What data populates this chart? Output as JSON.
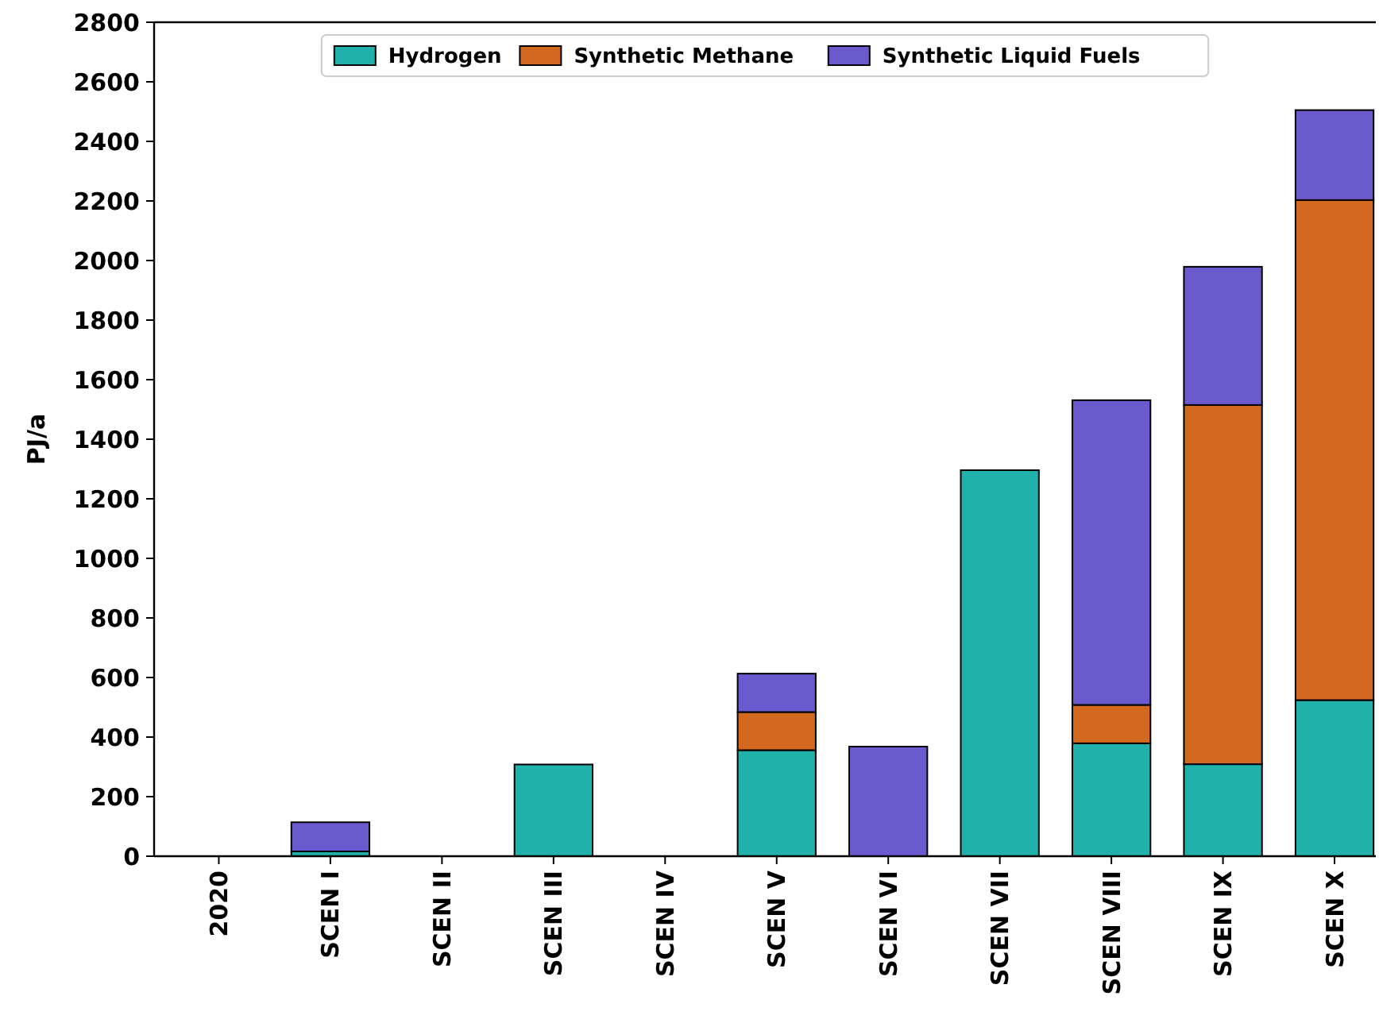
{
  "chart_data": {
    "type": "bar",
    "stacked": true,
    "ylabel": "PJ/a",
    "categories": [
      "2020",
      "SCEN I",
      "SCEN II",
      "SCEN III",
      "SCEN IV",
      "SCEN V",
      "SCEN VI",
      "SCEN VII",
      "SCEN VIII",
      "SCEN IX",
      "SCEN X"
    ],
    "series": [
      {
        "name": "Hydrogen",
        "color": "#20b2aa",
        "values": [
          0,
          16,
          0,
          308,
          0,
          356,
          0,
          1296,
          379,
          309,
          524
        ]
      },
      {
        "name": "Synthetic Methane",
        "color": "#d2691e",
        "values": [
          0,
          0,
          0,
          0,
          0,
          128,
          0,
          0,
          129,
          1206,
          1679
        ]
      },
      {
        "name": "Synthetic Liquid Fuels",
        "color": "#6a5acd",
        "values": [
          0,
          98,
          0,
          0,
          0,
          129,
          368,
          0,
          1023,
          464,
          302
        ]
      }
    ],
    "ylim": [
      0,
      2800
    ],
    "yticks": [
      0,
      200,
      400,
      600,
      800,
      1000,
      1200,
      1400,
      1600,
      1800,
      2000,
      2200,
      2400,
      2600,
      2800
    ],
    "legend": "top"
  }
}
